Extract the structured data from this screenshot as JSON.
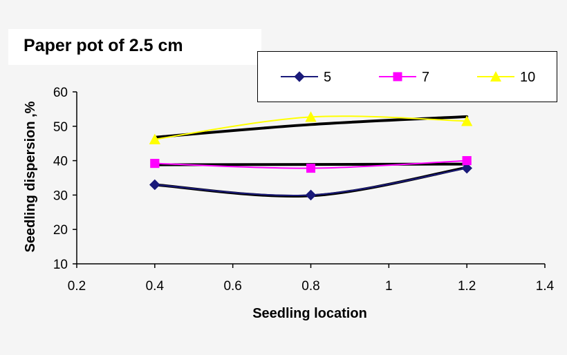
{
  "chart_data": {
    "type": "line",
    "title": "Paper pot of 2.5 cm",
    "xlabel": "Seedling location",
    "ylabel": "Seedling dispersion ,%",
    "xlim": [
      0.2,
      1.4
    ],
    "ylim": [
      10,
      60
    ],
    "x_ticks": [
      0.2,
      0.4,
      0.6,
      0.8,
      1,
      1.2,
      1.4
    ],
    "x_tick_labels": [
      "0.2",
      "0.4",
      "0.6",
      "0.8",
      "1",
      "1.2",
      "1.4"
    ],
    "y_ticks": [
      10,
      20,
      30,
      40,
      50,
      60
    ],
    "y_tick_labels": [
      "10",
      "20",
      "30",
      "40",
      "50",
      "60"
    ],
    "grid": false,
    "legend_position": "top-right",
    "x": [
      0.4,
      0.8,
      1.2
    ],
    "series": [
      {
        "name": "5",
        "values": [
          33,
          30,
          37.8
        ],
        "color": "#1a1a7a",
        "marker": "diamond"
      },
      {
        "name": "7",
        "values": [
          39.2,
          37.8,
          40
        ],
        "color": "#ff00ff",
        "marker": "square"
      },
      {
        "name": "10",
        "values": [
          46.2,
          52.7,
          51.5
        ],
        "color": "#ffff00",
        "marker": "triangle"
      }
    ],
    "trendlines": [
      {
        "values": [
          33,
          29.8,
          38
        ],
        "color": "#000000"
      },
      {
        "values": [
          38.8,
          38.9,
          39
        ],
        "color": "#000000"
      },
      {
        "values": [
          46.8,
          50.5,
          52.8
        ],
        "color": "#000000"
      }
    ]
  }
}
